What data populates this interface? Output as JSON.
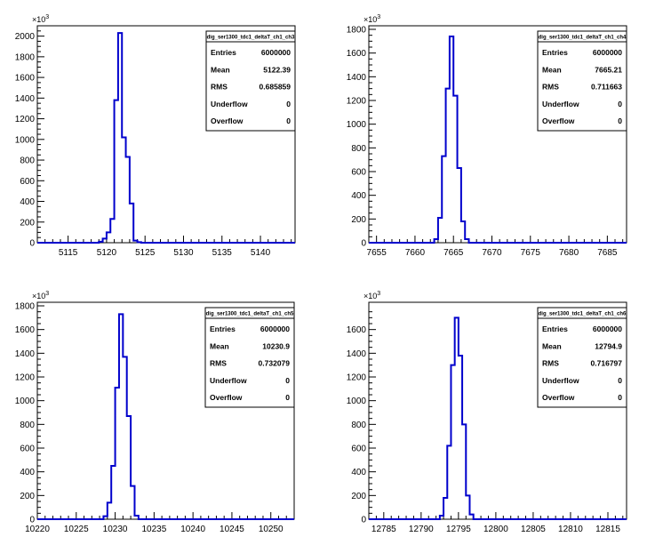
{
  "chart_data": [
    {
      "type": "histogram",
      "stats_title": "dig_ser1300_tdc1_deltaT_ch1_ch3",
      "stats": [
        {
          "label": "Entries",
          "value": "6000000"
        },
        {
          "label": "Mean",
          "value": "5122.39"
        },
        {
          "label": "RMS",
          "value": "0.685859"
        },
        {
          "label": "Underflow",
          "value": "0"
        },
        {
          "label": "Overflow",
          "value": "0"
        }
      ],
      "xlim": [
        5111,
        5144.5
      ],
      "ylim": [
        0,
        2100
      ],
      "y_exponent": "10^3",
      "x_ticks": [
        5115,
        5120,
        5125,
        5130,
        5135,
        5140
      ],
      "y_ticks": [
        0,
        200,
        400,
        600,
        800,
        1000,
        1200,
        1400,
        1600,
        1800,
        2000
      ],
      "bin_width": 0.5,
      "bins": [
        {
          "x": 5119.0,
          "y": 10
        },
        {
          "x": 5119.5,
          "y": 40
        },
        {
          "x": 5120.0,
          "y": 100
        },
        {
          "x": 5120.5,
          "y": 230
        },
        {
          "x": 5121.0,
          "y": 1380
        },
        {
          "x": 5121.5,
          "y": 2030
        },
        {
          "x": 5122.0,
          "y": 1020
        },
        {
          "x": 5122.5,
          "y": 830
        },
        {
          "x": 5123.0,
          "y": 380
        },
        {
          "x": 5123.5,
          "y": 20
        },
        {
          "x": 5124.0,
          "y": 5
        }
      ]
    },
    {
      "type": "histogram",
      "stats_title": "dig_ser1300_tdc1_deltaT_ch1_ch4",
      "stats": [
        {
          "label": "Entries",
          "value": "6000000"
        },
        {
          "label": "Mean",
          "value": "7665.21"
        },
        {
          "label": "RMS",
          "value": "0.711663"
        },
        {
          "label": "Underflow",
          "value": "0"
        },
        {
          "label": "Overflow",
          "value": "0"
        }
      ],
      "xlim": [
        7654,
        7687.5
      ],
      "ylim": [
        0,
        1830
      ],
      "y_exponent": "10^3",
      "x_ticks": [
        7655,
        7660,
        7665,
        7670,
        7675,
        7680,
        7685
      ],
      "y_ticks": [
        0,
        200,
        400,
        600,
        800,
        1000,
        1200,
        1400,
        1600,
        1800
      ],
      "bin_width": 0.5,
      "bins": [
        {
          "x": 7662.5,
          "y": 30
        },
        {
          "x": 7663.0,
          "y": 210
        },
        {
          "x": 7663.5,
          "y": 730
        },
        {
          "x": 7664.0,
          "y": 1300
        },
        {
          "x": 7664.5,
          "y": 1740
        },
        {
          "x": 7665.0,
          "y": 1240
        },
        {
          "x": 7665.5,
          "y": 630
        },
        {
          "x": 7666.0,
          "y": 180
        },
        {
          "x": 7666.5,
          "y": 30
        }
      ]
    },
    {
      "type": "histogram",
      "stats_title": "dig_ser1300_tdc1_deltaT_ch1_ch5",
      "stats": [
        {
          "label": "Entries",
          "value": "6000000"
        },
        {
          "label": "Mean",
          "value": "10230.9"
        },
        {
          "label": "RMS",
          "value": "0.732079"
        },
        {
          "label": "Underflow",
          "value": "0"
        },
        {
          "label": "Overflow",
          "value": "0"
        }
      ],
      "xlim": [
        10220,
        10253
      ],
      "ylim": [
        0,
        1830
      ],
      "y_exponent": "10^3",
      "x_ticks": [
        10220,
        10225,
        10230,
        10235,
        10240,
        10245,
        10250
      ],
      "y_ticks": [
        0,
        200,
        400,
        600,
        800,
        1000,
        1200,
        1400,
        1600,
        1800
      ],
      "bin_width": 0.5,
      "bins": [
        {
          "x": 10228.5,
          "y": 25
        },
        {
          "x": 10229.0,
          "y": 140
        },
        {
          "x": 10229.5,
          "y": 450
        },
        {
          "x": 10230.0,
          "y": 1110
        },
        {
          "x": 10230.5,
          "y": 1730
        },
        {
          "x": 10231.0,
          "y": 1370
        },
        {
          "x": 10231.5,
          "y": 870
        },
        {
          "x": 10232.0,
          "y": 280
        },
        {
          "x": 10232.5,
          "y": 30
        }
      ]
    },
    {
      "type": "histogram",
      "stats_title": "dig_ser1300_tdc1_deltaT_ch1_ch6",
      "stats": [
        {
          "label": "Entries",
          "value": "6000000"
        },
        {
          "label": "Mean",
          "value": "12794.9"
        },
        {
          "label": "RMS",
          "value": "0.716797"
        },
        {
          "label": "Underflow",
          "value": "0"
        },
        {
          "label": "Overflow",
          "value": "0"
        }
      ],
      "xlim": [
        12783,
        12817.5
      ],
      "ylim": [
        0,
        1830
      ],
      "y_exponent": "10^3",
      "x_ticks": [
        12785,
        12790,
        12795,
        12800,
        12805,
        12810,
        12815
      ],
      "y_ticks": [
        0,
        200,
        400,
        600,
        800,
        1000,
        1200,
        1400,
        1600
      ],
      "bin_width": 0.5,
      "bins": [
        {
          "x": 12792.5,
          "y": 30
        },
        {
          "x": 12793.0,
          "y": 180
        },
        {
          "x": 12793.5,
          "y": 620
        },
        {
          "x": 12794.0,
          "y": 1300
        },
        {
          "x": 12794.5,
          "y": 1700
        },
        {
          "x": 12795.0,
          "y": 1380
        },
        {
          "x": 12795.5,
          "y": 800
        },
        {
          "x": 12796.0,
          "y": 200
        },
        {
          "x": 12796.5,
          "y": 40
        }
      ]
    }
  ],
  "line_color": "#0000cc"
}
